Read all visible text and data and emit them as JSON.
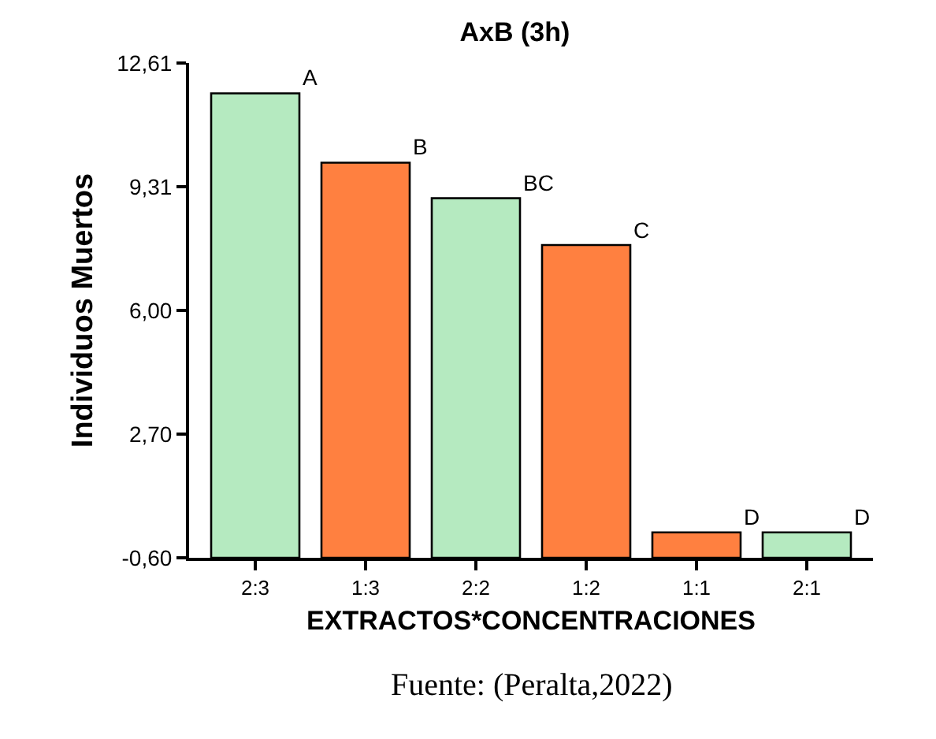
{
  "chart_data": {
    "type": "bar",
    "title": "AxB (3h)",
    "xlabel": "EXTRACTOS*CONCENTRACIONES",
    "ylabel": "Individuos Muertos",
    "categories": [
      "2:3",
      "1:3",
      "2:2",
      "1:2",
      "1:1",
      "2:1"
    ],
    "base": [
      -0.6,
      -0.6,
      -0.6,
      -0.6,
      -0.6,
      -0.6
    ],
    "values": [
      12.4,
      10.55,
      9.6,
      8.35,
      0.68,
      0.68
    ],
    "colors": [
      "#b5eac0",
      "#ff8040",
      "#b5eac0",
      "#ff8040",
      "#ff8040",
      "#b5eac0"
    ],
    "value_labels": [
      "A",
      "B",
      "BC",
      "C",
      "D",
      "D"
    ],
    "ylim": [
      -0.6,
      12.61
    ],
    "yticks": [
      {
        "value": -0.6,
        "label": "-0,60"
      },
      {
        "value": 2.7,
        "label": "2,70"
      },
      {
        "value": 6.0,
        "label": "6,00"
      },
      {
        "value": 9.31,
        "label": "9,31"
      },
      {
        "value": 12.61,
        "label": "12,61"
      }
    ],
    "grid": false,
    "annotations": [
      "Fuente: (Peralta,2022)"
    ]
  }
}
